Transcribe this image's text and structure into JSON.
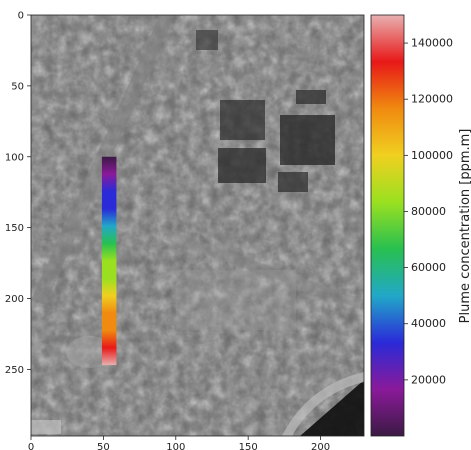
{
  "chart_data": {
    "type": "heatmap",
    "title": "",
    "xlabel": "",
    "ylabel": "",
    "xlim": [
      0,
      230
    ],
    "ylim": [
      297,
      0
    ],
    "x_ticks": [
      0,
      50,
      100,
      150,
      200
    ],
    "y_ticks": [
      0,
      50,
      100,
      150,
      200,
      250
    ],
    "background": "grayscale aerial image (industrial site)",
    "plume_strip": {
      "x_range": [
        49,
        59
      ],
      "y_range": [
        100,
        247
      ],
      "concentration_top": 2000,
      "concentration_bottom": 148000
    },
    "colorbar": {
      "label": "Plume concentration [ppm.m]",
      "range": [
        0,
        150000
      ],
      "ticks": [
        20000,
        40000,
        60000,
        80000,
        100000,
        120000,
        140000
      ],
      "colormap": [
        "#3b1a44",
        "#8a1a9a",
        "#2a2ad8",
        "#22a8c8",
        "#28c050",
        "#9ae020",
        "#f0d020",
        "#f08a10",
        "#e81818",
        "#e8b0b0"
      ]
    }
  }
}
